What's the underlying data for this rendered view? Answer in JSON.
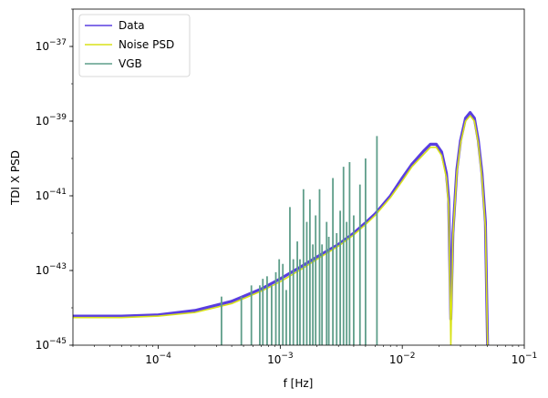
{
  "chart_data": {
    "type": "line",
    "xscale": "log",
    "yscale": "log",
    "xlim": [
      2e-05,
      0.1
    ],
    "ylim": [
      1e-45,
      1e-36
    ],
    "xlabel": "f [Hz]",
    "ylabel": "TDI X PSD",
    "grid": false,
    "legend_position": "top-left",
    "x_ticks": [
      {
        "base": "10",
        "exp": "−4",
        "value": 0.0001
      },
      {
        "base": "10",
        "exp": "−3",
        "value": 0.001
      },
      {
        "base": "10",
        "exp": "−2",
        "value": 0.01
      },
      {
        "base": "10",
        "exp": "−1",
        "value": 0.1
      }
    ],
    "y_ticks": [
      {
        "base": "10",
        "exp": "−45",
        "value": 1e-45
      },
      {
        "base": "10",
        "exp": "−43",
        "value": 1e-43
      },
      {
        "base": "10",
        "exp": "−41",
        "value": 1e-41
      },
      {
        "base": "10",
        "exp": "−39",
        "value": 1e-39
      },
      {
        "base": "10",
        "exp": "−37",
        "value": 1e-37
      }
    ],
    "series": [
      {
        "name": "Data",
        "color": "#5a3ee0",
        "x": [
          2e-05,
          5e-05,
          0.0001,
          0.0002,
          0.0004,
          0.0007,
          0.001,
          0.0015,
          0.002,
          0.003,
          0.004,
          0.005,
          0.006,
          0.008,
          0.01,
          0.012,
          0.015,
          0.017,
          0.019,
          0.021,
          0.023,
          0.024,
          0.025,
          0.026,
          0.028,
          0.03,
          0.033,
          0.036,
          0.039,
          0.042,
          0.045,
          0.048,
          0.05
        ],
        "y": [
          6e-45,
          6e-45,
          6.5e-45,
          8.5e-45,
          1.5e-44,
          3.2e-44,
          6e-44,
          1.3e-43,
          2.3e-43,
          5e-43,
          1e-42,
          1.9e-42,
          3.3e-42,
          1e-41,
          3e-41,
          7e-41,
          1.6e-40,
          2.4e-40,
          2.4e-40,
          1.5e-40,
          4e-41,
          8e-42,
          5e-45,
          1e-42,
          5e-41,
          3e-40,
          1.2e-39,
          1.7e-39,
          1.2e-39,
          3e-40,
          4e-41,
          2e-42,
          1e-45
        ]
      },
      {
        "name": "Noise PSD",
        "color": "#d8e219",
        "x": [
          2e-05,
          5e-05,
          0.0001,
          0.0002,
          0.0004,
          0.0007,
          0.001,
          0.0015,
          0.002,
          0.003,
          0.004,
          0.005,
          0.006,
          0.008,
          0.01,
          0.012,
          0.015,
          0.017,
          0.019,
          0.021,
          0.023,
          0.024,
          0.025,
          0.026,
          0.028,
          0.03,
          0.033,
          0.036,
          0.039,
          0.042,
          0.045,
          0.048,
          0.05
        ],
        "y": [
          5.5e-45,
          5.5e-45,
          6e-45,
          7.5e-45,
          1.3e-44,
          2.8e-44,
          5e-44,
          1.1e-43,
          2e-43,
          4.5e-43,
          9e-43,
          1.7e-42,
          3e-42,
          9e-42,
          2.5e-41,
          6e-41,
          1.3e-40,
          2e-40,
          2e-40,
          1.2e-40,
          3e-41,
          5e-42,
          1e-45,
          8e-43,
          4e-41,
          2.5e-40,
          1e-39,
          1.4e-39,
          1e-39,
          2.5e-40,
          3e-41,
          1.5e-42,
          1e-45
        ]
      },
      {
        "name": "VGB",
        "color": "#5f9e8a",
        "type": "spikes",
        "x": [
          0.00033,
          0.00048,
          0.00058,
          0.00068,
          0.00072,
          0.00078,
          0.00085,
          0.00092,
          0.00098,
          0.00105,
          0.00112,
          0.0012,
          0.00128,
          0.00138,
          0.00145,
          0.00155,
          0.00165,
          0.00175,
          0.00185,
          0.00195,
          0.0021,
          0.0022,
          0.0024,
          0.0025,
          0.0027,
          0.0029,
          0.0031,
          0.0033,
          0.0035,
          0.0037,
          0.004,
          0.0045,
          0.005,
          0.0062
        ],
        "y": [
          2e-44,
          2e-44,
          4e-44,
          4e-44,
          6e-44,
          7e-44,
          4e-44,
          9e-44,
          2e-43,
          1.5e-43,
          3e-44,
          5e-42,
          2e-43,
          6e-43,
          2e-43,
          1.5e-41,
          2e-42,
          8e-42,
          5e-43,
          3e-42,
          1.5e-41,
          5e-43,
          2e-42,
          8e-43,
          3e-41,
          1e-42,
          4e-42,
          6e-41,
          2e-42,
          8e-41,
          3e-42,
          2e-41,
          1e-40,
          4e-40
        ]
      }
    ]
  }
}
